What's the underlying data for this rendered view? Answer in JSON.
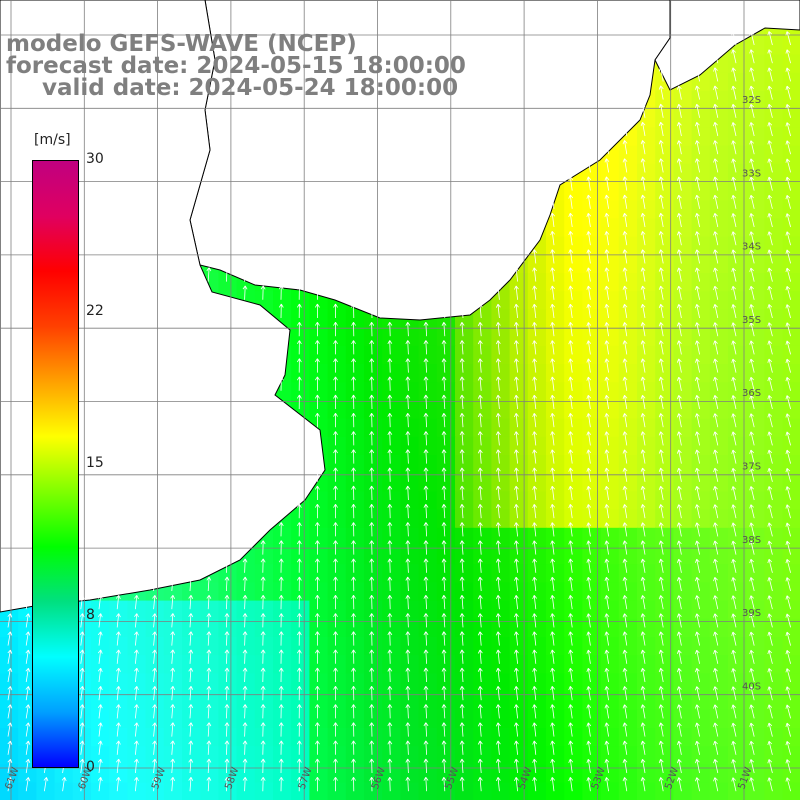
{
  "title": {
    "line1": "modelo GEFS-WAVE (NCEP)",
    "line2": "forecast date: 2024-05-15 18:00:00",
    "line3": "valid date: 2024-05-24 18:00:00"
  },
  "colorbar": {
    "unit": "[m/s]",
    "ticks": [
      "30",
      "22",
      "15",
      "8",
      "0"
    ],
    "tick_values": [
      30,
      22,
      15,
      8,
      0
    ],
    "colors": [
      "#0000ff",
      "#00a0ff",
      "#00ffff",
      "#00e080",
      "#00ff00",
      "#80ff00",
      "#ffff00",
      "#ffa000",
      "#ff4000",
      "#ff0000",
      "#e00060",
      "#c00080"
    ]
  },
  "axes": {
    "lat_labels": [
      "32S",
      "33S",
      "34S",
      "35S",
      "36S",
      "37S",
      "38S",
      "39S",
      "40S"
    ],
    "lon_labels": [
      "61W",
      "60W",
      "59W",
      "58W",
      "57W",
      "56W",
      "55W",
      "54W",
      "53W",
      "52W",
      "51W"
    ]
  }
}
